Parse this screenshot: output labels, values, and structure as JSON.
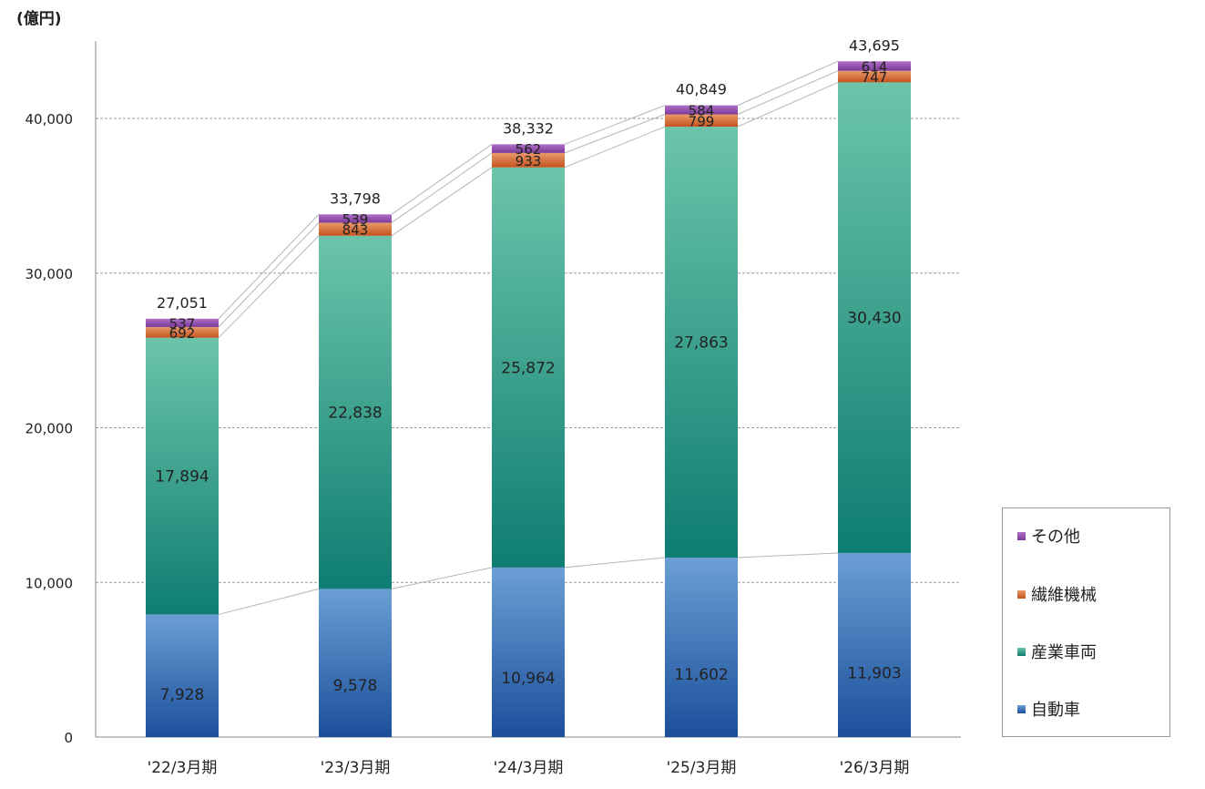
{
  "chart_data": {
    "type": "bar",
    "stacked": true,
    "unit_label": "(億円)",
    "categories": [
      "'22/3月期",
      "'23/3月期",
      "'24/3月期",
      "'25/3月期",
      "'26/3月期"
    ],
    "ylim": [
      0,
      45000
    ],
    "yticks": [
      "0",
      "10,000",
      "20,000",
      "30,000",
      "40,000"
    ],
    "ytick_values": [
      0,
      10000,
      20000,
      30000,
      40000
    ],
    "grid": true,
    "legend_position": "bottom-right",
    "series": [
      {
        "name": "自動車",
        "values": [
          7928,
          9578,
          10964,
          11602,
          11903
        ],
        "labels": [
          "7,928",
          "9,578",
          "10,964",
          "11,602",
          "11,903"
        ],
        "color_top": "#6b9fd4",
        "color_bottom": "#1b4f9c"
      },
      {
        "name": "産業車両",
        "values": [
          17894,
          22838,
          25872,
          27863,
          30430
        ],
        "labels": [
          "17,894",
          "22,838",
          "25,872",
          "27,863",
          "30,430"
        ],
        "color_top": "#6cc5aa",
        "color_bottom": "#0e7d72"
      },
      {
        "name": "繊維機械",
        "values": [
          692,
          843,
          933,
          799,
          747
        ],
        "labels": [
          "692",
          "843",
          "933",
          "799",
          "747"
        ],
        "color_top": "#e89a6a",
        "color_bottom": "#c4521e"
      },
      {
        "name": "その他",
        "values": [
          537,
          539,
          562,
          584,
          614
        ],
        "labels": [
          "537",
          "539",
          "562",
          "584",
          "614"
        ],
        "color_top": "#b070c8",
        "color_bottom": "#7b3a98"
      }
    ],
    "totals": [
      27051,
      33798,
      38332,
      40849,
      43695
    ],
    "total_labels": [
      "27,051",
      "33,798",
      "38,332",
      "40,849",
      "43,695"
    ],
    "legend_order": [
      "その他",
      "繊維機械",
      "産業車両",
      "自動車"
    ]
  }
}
